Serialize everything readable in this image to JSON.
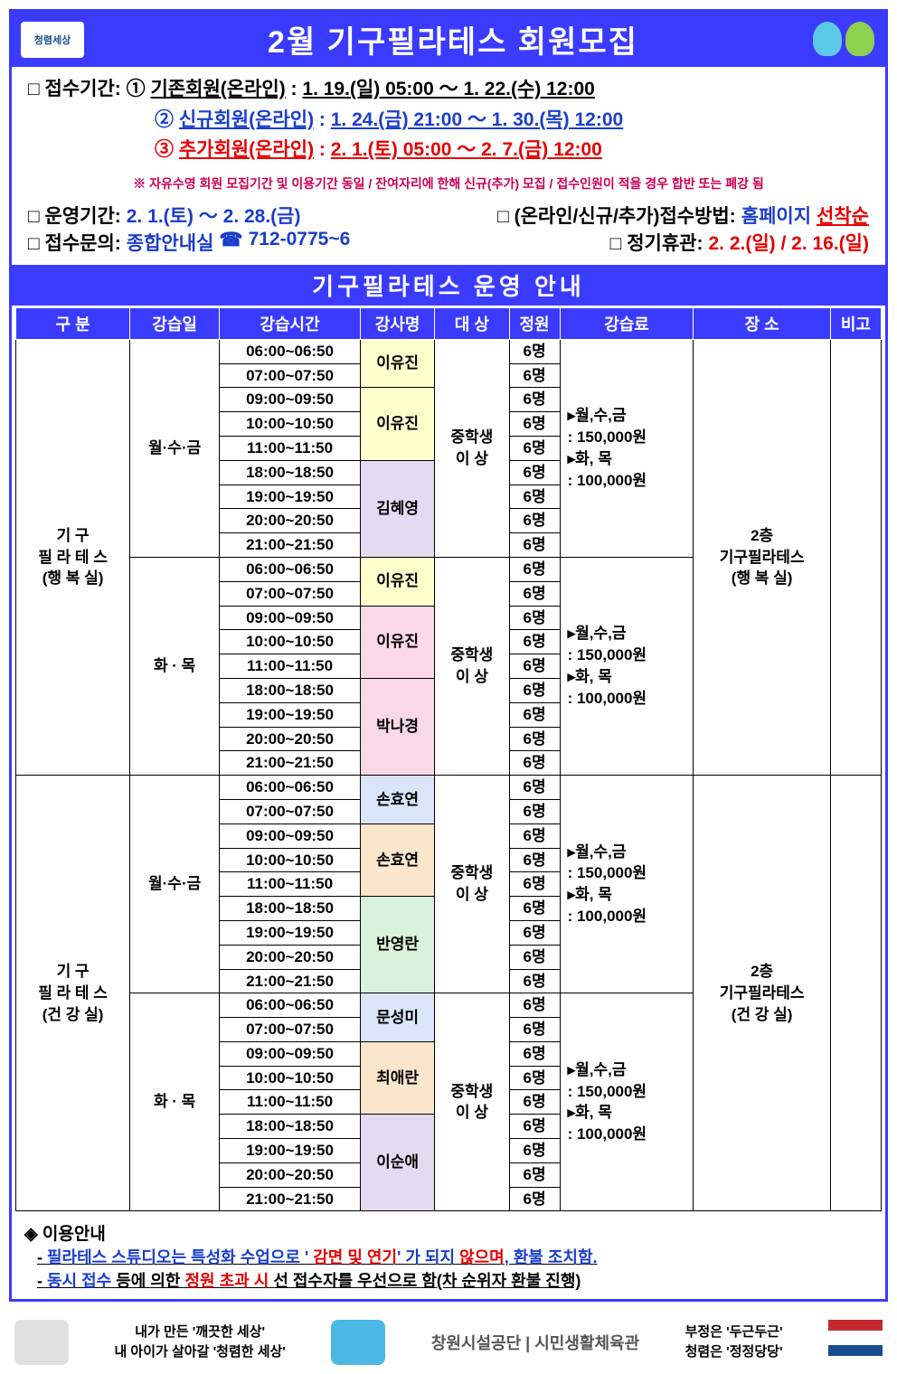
{
  "colors": {
    "primary": "#3b3bff",
    "red": "#e60000",
    "blue": "#1a3dcc",
    "pink": "#cc0055",
    "green": "#009933",
    "bg_yellow": "#ffffcc",
    "bg_lavender": "#e6d9f2",
    "bg_green": "#d9f2d9",
    "bg_blue": "#d9e6f9",
    "bg_pink": "#f9d9e6",
    "bg_orange": "#f9e6cc"
  },
  "header": {
    "logo_text": "청렴세상",
    "title": "2월 기구필라테스 회원모집"
  },
  "registration": {
    "label": "□ 접수기간:",
    "lines": [
      {
        "num": "①",
        "cat": "기존회원(온라인)",
        "sep": ":",
        "period": "1. 19.(일) 05:00 ～ 1. 22.(수) 12:00",
        "color": "#000"
      },
      {
        "num": "②",
        "cat": "신규회원(온라인)",
        "sep": ":",
        "period": "1. 24.(금) 21:00 ～ 1. 30.(목) 12:00",
        "color": "#1a3dcc"
      },
      {
        "num": "③",
        "cat": "추가회원(온라인)",
        "sep": ":",
        "period": "2. 1.(토) 05:00 ～ 2. 7.(금) 12:00",
        "color": "#e60000"
      }
    ],
    "note": "※ 자유수영 회원 모집기간 및 이용기간 동일 / 잔여자리에 한해 신규(추가) 모집 / 접수인원이 적을 경우 합반 또는 폐강 됨"
  },
  "ops": {
    "l1_a": "□ 운영기간:",
    "l1_a_val": "2. 1.(토) ～ 2. 28.(금)",
    "l1_b": "□ (온라인/신규/추가)접수방법:",
    "l1_b_val": "홈페이지",
    "l1_b_val2": "선착순",
    "l2_a": "□ 접수문의:",
    "l2_a_val": "종합안내실",
    "l2_a_phone": "712-0775~6",
    "l2_b": "□ 정기휴관:",
    "l2_b_val": "2. 2.(일) / 2. 16.(일)"
  },
  "section_title": "기구필라테스 운영 안내",
  "table": {
    "headers": [
      "구 분",
      "강습일",
      "강습시간",
      "강사명",
      "대 상",
      "정원",
      "강습료",
      "장 소",
      "비고"
    ],
    "target": "중학생\n이   상",
    "capacity": "6명",
    "fee_text": "▸월,수,금\n : 150,000원\n▸화, 목\n : 100,000원",
    "blocks": [
      {
        "category_lines": [
          "기      구",
          "필 라 테 스",
          "(행 복 실)"
        ],
        "location_lines": [
          "2층",
          "기구필라테스",
          "(행 복 실)"
        ],
        "days": [
          {
            "day": "월·수·금",
            "rows": [
              {
                "time": "06:00~06:50",
                "inst": "이유진",
                "bg": "bg-yellow",
                "ispan": 2
              },
              {
                "time": "07:00~07:50",
                "bg": "bg-yellow"
              },
              {
                "time": "09:00~09:50",
                "inst": "이유진",
                "bg": "bg-yellow",
                "ispan": 3
              },
              {
                "time": "10:00~10:50",
                "bg": "bg-yellow"
              },
              {
                "time": "11:00~11:50",
                "bg": "bg-yellow"
              },
              {
                "time": "18:00~18:50",
                "inst": "김혜영",
                "bg": "bg-lav",
                "ispan": 4
              },
              {
                "time": "19:00~19:50",
                "bg": "bg-lav"
              },
              {
                "time": "20:00~20:50",
                "bg": "bg-lav"
              },
              {
                "time": "21:00~21:50",
                "bg": "bg-lav"
              }
            ]
          },
          {
            "day": "화 · 목",
            "rows": [
              {
                "time": "06:00~06:50",
                "inst": "이유진",
                "bg": "bg-yellow",
                "ispan": 2
              },
              {
                "time": "07:00~07:50",
                "bg": "bg-yellow"
              },
              {
                "time": "09:00~09:50",
                "inst": "이유진",
                "bg": "bg-pnk",
                "ispan": 3
              },
              {
                "time": "10:00~10:50",
                "bg": "bg-pnk"
              },
              {
                "time": "11:00~11:50",
                "bg": "bg-pnk"
              },
              {
                "time": "18:00~18:50",
                "inst": "박나경",
                "bg": "bg-pnk",
                "ispan": 4
              },
              {
                "time": "19:00~19:50",
                "bg": "bg-pnk"
              },
              {
                "time": "20:00~20:50",
                "bg": "bg-pnk"
              },
              {
                "time": "21:00~21:50",
                "bg": "bg-pnk"
              }
            ]
          }
        ]
      },
      {
        "category_lines": [
          "기      구",
          "필 라 테 스",
          "(건 강 실)"
        ],
        "location_lines": [
          "2층",
          "기구필라테스",
          "(건 강 실)"
        ],
        "days": [
          {
            "day": "월·수·금",
            "rows": [
              {
                "time": "06:00~06:50",
                "inst": "손효연",
                "bg": "bg-blu",
                "ispan": 2
              },
              {
                "time": "07:00~07:50",
                "bg": "bg-blu"
              },
              {
                "time": "09:00~09:50",
                "inst": "손효연",
                "bg": "bg-org",
                "ispan": 3
              },
              {
                "time": "10:00~10:50",
                "bg": "bg-org"
              },
              {
                "time": "11:00~11:50",
                "bg": "bg-org"
              },
              {
                "time": "18:00~18:50",
                "inst": "반영란",
                "bg": "bg-grn",
                "ispan": 4
              },
              {
                "time": "19:00~19:50",
                "bg": "bg-grn"
              },
              {
                "time": "20:00~20:50",
                "bg": "bg-grn"
              },
              {
                "time": "21:00~21:50",
                "bg": "bg-grn"
              }
            ]
          },
          {
            "day": "화 · 목",
            "rows": [
              {
                "time": "06:00~06:50",
                "inst": "문성미",
                "bg": "bg-blu",
                "ispan": 2
              },
              {
                "time": "07:00~07:50",
                "bg": "bg-blu"
              },
              {
                "time": "09:00~09:50",
                "inst": "최애란",
                "bg": "bg-org",
                "ispan": 3
              },
              {
                "time": "10:00~10:50",
                "bg": "bg-org"
              },
              {
                "time": "11:00~11:50",
                "bg": "bg-org"
              },
              {
                "time": "18:00~18:50",
                "inst": "이순애",
                "bg": "bg-lav",
                "ispan": 4
              },
              {
                "time": "19:00~19:50",
                "bg": "bg-lav"
              },
              {
                "time": "20:00~20:50",
                "bg": "bg-lav"
              },
              {
                "time": "21:00~21:50",
                "bg": "bg-lav"
              }
            ]
          }
        ]
      }
    ]
  },
  "footer_notes": {
    "title": "◈ 이용안내",
    "l1_parts": [
      "- ",
      "필라테스 스튜디오는 특성화 수업으로  ' ",
      "감면 및 연기",
      "'  가 되지 ",
      "않으며",
      ", 환불 조치함."
    ],
    "l2_parts": [
      "- ",
      "동시 접수",
      " 등에 의한 ",
      "정원 초과 시",
      " 선 접수자를 우선으로 함(차 순위자 환불 진행)"
    ]
  },
  "bottom": {
    "slogan1": "내가 만든 '깨끗한 세상'",
    "slogan2": "내 아이가 살아갈 '청렴한 세상'",
    "org": "창원시설공단 | 시민생활체육관",
    "r1": "부정은 '두근두근'",
    "r2": "청렴은 '정정당당'"
  }
}
